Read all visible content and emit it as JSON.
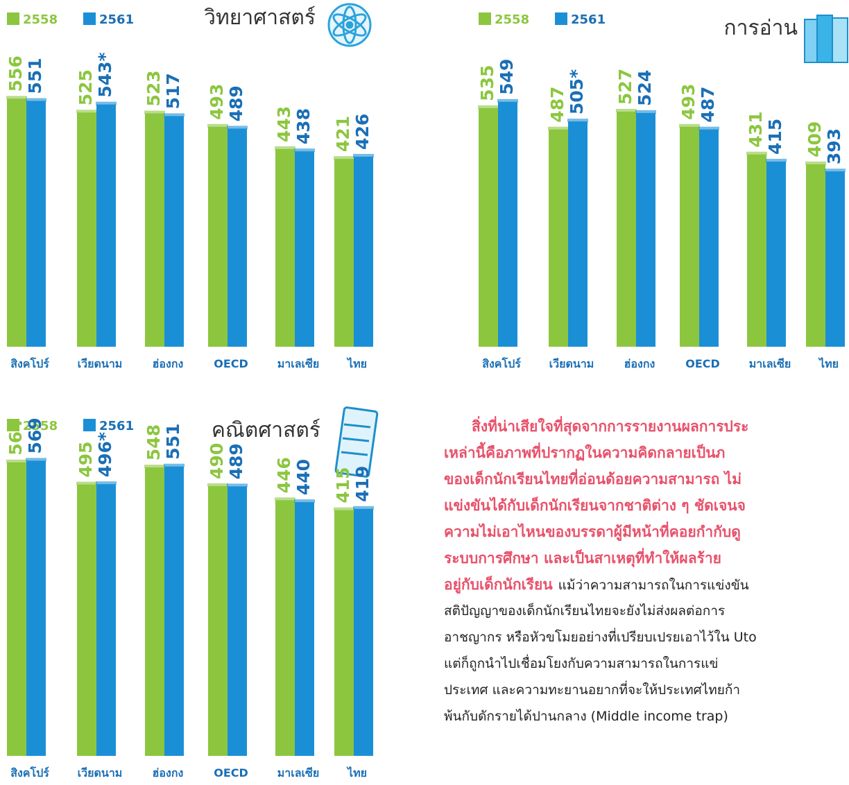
{
  "chart_data": [
    {
      "type": "bar",
      "title": "วิทยาศาสตร์",
      "categories": [
        "สิงคโปร์",
        "เวียดนาม",
        "ฮ่องกง",
        "OECD",
        "มาเลเซีย",
        "ไทย"
      ],
      "series": [
        {
          "name": "2558",
          "color": "#8cc63f",
          "values": [
            556,
            525,
            523,
            493,
            443,
            421
          ]
        },
        {
          "name": "2561",
          "color": "#1b8fd6",
          "values": [
            551,
            543,
            517,
            489,
            438,
            426
          ],
          "value_labels": [
            "551",
            "543*",
            "517",
            "489",
            "438",
            "426"
          ]
        }
      ],
      "ylim": [
        0,
        600
      ]
    },
    {
      "type": "bar",
      "title": "การอ่าน",
      "categories": [
        "สิงคโปร์",
        "เวียดนาม",
        "ฮ่องกง",
        "OECD",
        "มาเลเซีย",
        "ไทย"
      ],
      "series": [
        {
          "name": "2558",
          "color": "#8cc63f",
          "values": [
            535,
            487,
            527,
            493,
            431,
            409
          ]
        },
        {
          "name": "2561",
          "color": "#1b8fd6",
          "values": [
            549,
            505,
            524,
            487,
            415,
            393
          ],
          "value_labels": [
            "549",
            "505*",
            "524",
            "487",
            "415",
            "393"
          ]
        }
      ],
      "ylim": [
        0,
        600
      ]
    },
    {
      "type": "bar",
      "title": "คณิตศาสตร์",
      "categories": [
        "สิงคโปร์",
        "เวียดนาม",
        "ฮ่องกง",
        "OECD",
        "มาเลเซีย",
        "ไทย"
      ],
      "series": [
        {
          "name": "2558",
          "color": "#8cc63f",
          "values": [
            564,
            495,
            548,
            490,
            446,
            415
          ]
        },
        {
          "name": "2561",
          "color": "#1b8fd6",
          "values": [
            569,
            496,
            551,
            489,
            440,
            419
          ],
          "value_labels": [
            "569",
            "496*",
            "551",
            "489",
            "440",
            "419"
          ]
        }
      ],
      "ylim": [
        -350,
        600
      ]
    }
  ],
  "article": {
    "lines": [
      [
        {
          "text": "สิ่งที่น่าเสียใจที่สุดจากการรายงานผลการประ",
          "emphasis": true
        }
      ],
      [
        {
          "text": "เหล่านี้คือภาพที่ปรากฏในความคิดกลายเป็นภ",
          "emphasis": true
        }
      ],
      [
        {
          "text": "ของเด็กนักเรียนไทยที่อ่อนด้อยความสามารถ ไม่",
          "emphasis": true
        }
      ],
      [
        {
          "text": "แข่งขันได้กับเด็กนักเรียนจากชาติต่าง ๆ ชัดเจนจ",
          "emphasis": true
        }
      ],
      [
        {
          "text": "ความไม่เอาไหนของบรรดาผู้มีหน้าที่คอยกำกับดู",
          "emphasis": true
        }
      ],
      [
        {
          "text": "ระบบการศึกษา และเป็นสาเหตุที่ทำให้ผลร้าย",
          "emphasis": true
        }
      ],
      [
        {
          "text": "อยู่กับเด็กนักเรียน",
          "emphasis": true
        },
        {
          "text": "แม้ว่าความสามารถในการแข่งขัน",
          "emphasis": false
        }
      ],
      [
        {
          "text": "สติปัญญาของเด็กนักเรียนไทยจะยังไม่ส่งผลต่อการ",
          "emphasis": false
        }
      ],
      [
        {
          "text": "อาชญากร หรือหัวขโมยอย่างที่เปรียบเปรยเอาไว้ใน Uto",
          "emphasis": false
        }
      ],
      [
        {
          "text": "แต่ก็ถูกนำไปเชื่อมโยงกับความสามารถในการแข่",
          "emphasis": false
        }
      ],
      [
        {
          "text": "ประเทศ และความทะยานอยากที่จะให้ประเทศไทยก้า",
          "emphasis": false
        }
      ],
      [
        {
          "text": "พ้นกับดักรายได้ปานกลาง (Middle income trap)",
          "emphasis": false
        }
      ]
    ]
  }
}
